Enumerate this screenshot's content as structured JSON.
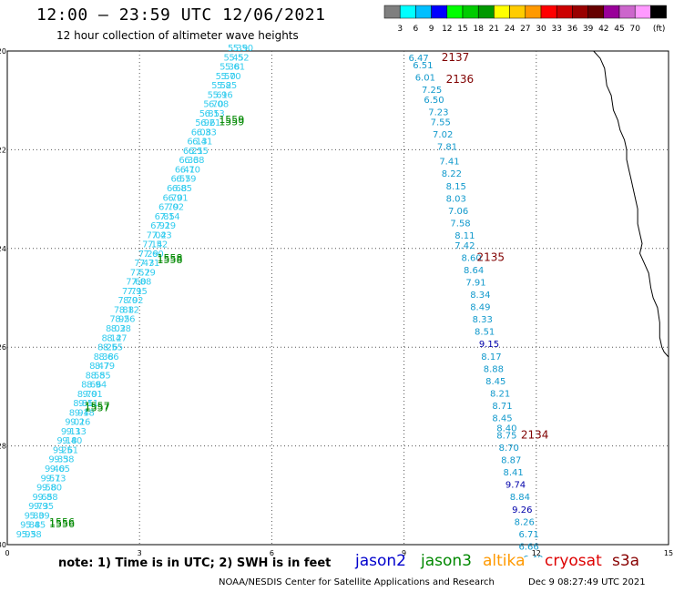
{
  "header": {
    "title": "12:00 — 23:59 UTC 12/06/2021",
    "subtitle": "12 hour collection of altimeter wave heights"
  },
  "legend": {
    "unit_label": "(ft)",
    "bins": [
      {
        "label": "",
        "color": "#7f7f7f"
      },
      {
        "label": "3",
        "color": "#00ffff"
      },
      {
        "label": "6",
        "color": "#00bfff"
      },
      {
        "label": "9",
        "color": "#0000ff"
      },
      {
        "label": "12",
        "color": "#00ff00"
      },
      {
        "label": "15",
        "color": "#00cc00"
      },
      {
        "label": "18",
        "color": "#009900"
      },
      {
        "label": "21",
        "color": "#ffff00"
      },
      {
        "label": "24",
        "color": "#ffcc00"
      },
      {
        "label": "27",
        "color": "#ff9900"
      },
      {
        "label": "30",
        "color": "#ff0000"
      },
      {
        "label": "33",
        "color": "#cc0000"
      },
      {
        "label": "36",
        "color": "#990000"
      },
      {
        "label": "39",
        "color": "#660000"
      },
      {
        "label": "42",
        "color": "#990099"
      },
      {
        "label": "45",
        "color": "#cc66cc"
      },
      {
        "label": "70",
        "color": "#ff99ff"
      },
      {
        "label": "",
        "color": "#000000"
      }
    ]
  },
  "axes": {
    "x_ticks": [
      "0",
      "3",
      "6",
      "9",
      "12",
      "15"
    ],
    "y_ticks": [
      "-20",
      "-22",
      "-24",
      "-26",
      "-28",
      "-30"
    ]
  },
  "colors": {
    "cyan_track": "#33ccee",
    "right_track": "#1199cc",
    "dark_blue": "#0000aa",
    "green_time": "#008800",
    "maroon_time": "#800000",
    "coast": "#000000",
    "grid": "#555555"
  },
  "chart_data": {
    "type": "map",
    "x_range": [
      0,
      15
    ],
    "y_range": [
      -20,
      -30
    ],
    "grid": true,
    "right_track": {
      "satellite": "cryosat",
      "points": [
        {
          "x": 9.1,
          "y": -20.2,
          "v": "6.47"
        },
        {
          "x": 9.2,
          "y": -20.35,
          "v": "6.51"
        },
        {
          "x": 9.25,
          "y": -20.6,
          "v": "6.01"
        },
        {
          "x": 9.4,
          "y": -20.85,
          "v": "7.25"
        },
        {
          "x": 9.45,
          "y": -21.05,
          "v": "6.50"
        },
        {
          "x": 9.55,
          "y": -21.3,
          "v": "7.23"
        },
        {
          "x": 9.6,
          "y": -21.5,
          "v": "7.55"
        },
        {
          "x": 9.65,
          "y": -21.75,
          "v": "7.02"
        },
        {
          "x": 9.75,
          "y": -22.0,
          "v": "7.81"
        },
        {
          "x": 9.8,
          "y": -22.3,
          "v": "7.41"
        },
        {
          "x": 9.85,
          "y": -22.55,
          "v": "8.22"
        },
        {
          "x": 9.95,
          "y": -22.8,
          "v": "8.15"
        },
        {
          "x": 9.95,
          "y": -23.05,
          "v": "8.03"
        },
        {
          "x": 10.0,
          "y": -23.3,
          "v": "7.06"
        },
        {
          "x": 10.05,
          "y": -23.55,
          "v": "7.58"
        },
        {
          "x": 10.15,
          "y": -23.8,
          "v": "8.11"
        },
        {
          "x": 10.15,
          "y": -24.0,
          "v": "7.42"
        },
        {
          "x": 10.3,
          "y": -24.25,
          "v": "8.60"
        },
        {
          "x": 10.35,
          "y": -24.5,
          "v": "8.64"
        },
        {
          "x": 10.4,
          "y": -24.75,
          "v": "7.91"
        },
        {
          "x": 10.5,
          "y": -25.0,
          "v": "8.34"
        },
        {
          "x": 10.5,
          "y": -25.25,
          "v": "8.49"
        },
        {
          "x": 10.55,
          "y": -25.5,
          "v": "8.33"
        },
        {
          "x": 10.6,
          "y": -25.75,
          "v": "8.51"
        },
        {
          "x": 10.7,
          "y": -26.0,
          "v": "9.15",
          "hl": true
        },
        {
          "x": 10.75,
          "y": -26.25,
          "v": "8.17"
        },
        {
          "x": 10.8,
          "y": -26.5,
          "v": "8.88"
        },
        {
          "x": 10.85,
          "y": -26.75,
          "v": "8.45"
        },
        {
          "x": 10.95,
          "y": -27.0,
          "v": "8.21"
        },
        {
          "x": 11.0,
          "y": -27.25,
          "v": "8.71"
        },
        {
          "x": 11.0,
          "y": -27.5,
          "v": "8.45"
        },
        {
          "x": 11.1,
          "y": -27.7,
          "v": "8.40"
        },
        {
          "x": 11.1,
          "y": -27.85,
          "v": "8.75"
        },
        {
          "x": 11.15,
          "y": -28.1,
          "v": "8.70"
        },
        {
          "x": 11.2,
          "y": -28.35,
          "v": "8.87"
        },
        {
          "x": 11.25,
          "y": -28.6,
          "v": "8.41"
        },
        {
          "x": 11.3,
          "y": -28.85,
          "v": "9.74",
          "hl": true
        },
        {
          "x": 11.4,
          "y": -29.1,
          "v": "8.84"
        },
        {
          "x": 11.45,
          "y": -29.35,
          "v": "9.26",
          "hl": true
        },
        {
          "x": 11.5,
          "y": -29.6,
          "v": "8.26"
        },
        {
          "x": 11.6,
          "y": -29.85,
          "v": "6.71"
        },
        {
          "x": 11.6,
          "y": -30.1,
          "v": "6.66"
        },
        {
          "x": 11.7,
          "y": -30.35,
          "v": "6.49"
        }
      ],
      "times": [
        {
          "x": 9.85,
          "y": -20.2,
          "t": "2137"
        },
        {
          "x": 9.95,
          "y": -20.65,
          "t": "2136"
        },
        {
          "x": 10.65,
          "y": -24.25,
          "t": "2135"
        },
        {
          "x": 11.65,
          "y": -27.85,
          "t": "2134"
        }
      ]
    },
    "left_track": {
      "satellite": "jason3",
      "description_values": [
        "5.39",
        "5.45",
        "5.38",
        "5.50",
        "5.52",
        "5.61",
        "5.70",
        "5.85",
        "5.96",
        "6.08",
        "6.13",
        "6.21",
        "6.33",
        "6.41",
        "6.55",
        "6.68",
        "6.70",
        "6.79",
        "6.85",
        "6.91",
        "7.02",
        "7.14",
        "7.29",
        "7.43",
        "7.52",
        "7.60",
        "7.71",
        "7.79",
        "7.88",
        "7.95",
        "8.02",
        "8.12",
        "8.26",
        "8.38",
        "8.47",
        "8.55",
        "8.66",
        "8.79",
        "8.85",
        "8.94",
        "9.01",
        "9.11",
        "9.18",
        "9.26",
        "9.33",
        "9.40",
        "9.51",
        "9.58",
        "9.65",
        "9.73",
        "9.80",
        "9.88",
        "9.95"
      ],
      "start": {
        "x": 5.0,
        "y": -20.0
      },
      "end": {
        "x": 0.2,
        "y": -29.85
      },
      "times": [
        {
          "x": 4.8,
          "y": -21.5,
          "t": "1559"
        },
        {
          "x": 3.4,
          "y": -24.3,
          "t": "1558"
        },
        {
          "x": 1.75,
          "y": -27.3,
          "t": "1557"
        },
        {
          "x": 0.95,
          "y": -29.65,
          "t": "1556"
        }
      ]
    }
  },
  "footer": {
    "note": "note:  1) Time is in UTC;  2) SWH is in feet",
    "satellites": [
      {
        "name": "jason2",
        "color": "#0000cc"
      },
      {
        "name": "jason3",
        "color": "#008800"
      },
      {
        "name": "altika",
        "color": "#ff9900"
      },
      {
        "name": "cryosat",
        "color": "#dd0000"
      },
      {
        "name": "s3a",
        "color": "#880000"
      }
    ],
    "credit": "NOAA/NESDIS Center for Satellite Applications and Research",
    "timestamp": "Dec  9 08:27:49 UTC 2021"
  }
}
